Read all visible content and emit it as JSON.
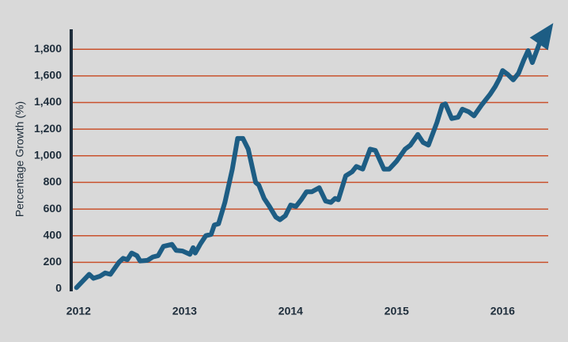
{
  "chart_data": {
    "type": "line",
    "y_label": "Percentage Growth (%)",
    "x": [
      2011.98,
      2012.1,
      2012.14,
      2012.2,
      2012.25,
      2012.3,
      2012.38,
      2012.42,
      2012.46,
      2012.5,
      2012.55,
      2012.58,
      2012.65,
      2012.7,
      2012.75,
      2012.8,
      2012.88,
      2012.92,
      2012.98,
      2013.05,
      2013.08,
      2013.1,
      2013.15,
      2013.2,
      2013.25,
      2013.28,
      2013.32,
      2013.38,
      2013.45,
      2013.5,
      2013.55,
      2013.6,
      2013.67,
      2013.7,
      2013.75,
      2013.8,
      2013.86,
      2013.9,
      2013.95,
      2014.0,
      2014.05,
      2014.1,
      2014.15,
      2014.2,
      2014.27,
      2014.33,
      2014.38,
      2014.42,
      2014.45,
      2014.52,
      2014.58,
      2014.62,
      2014.68,
      2014.75,
      2014.8,
      2014.88,
      2014.93,
      2015.0,
      2015.08,
      2015.13,
      2015.2,
      2015.25,
      2015.3,
      2015.38,
      2015.43,
      2015.46,
      2015.52,
      2015.58,
      2015.62,
      2015.68,
      2015.73,
      2015.8,
      2015.88,
      2015.93,
      2015.97,
      2016.0,
      2016.05,
      2016.1,
      2016.15,
      2016.2,
      2016.24,
      2016.28,
      2016.35
    ],
    "series": [
      {
        "color": "#1d5d84",
        "values": [
          10,
          110,
          80,
          95,
          120,
          110,
          200,
          230,
          220,
          270,
          250,
          210,
          215,
          240,
          250,
          320,
          335,
          290,
          285,
          260,
          310,
          270,
          340,
          400,
          410,
          480,
          490,
          650,
          900,
          1130,
          1130,
          1050,
          800,
          780,
          680,
          620,
          540,
          520,
          550,
          630,
          620,
          670,
          730,
          730,
          760,
          660,
          650,
          680,
          670,
          850,
          880,
          920,
          900,
          1050,
          1040,
          900,
          900,
          960,
          1050,
          1080,
          1160,
          1100,
          1080,
          1250,
          1380,
          1390,
          1280,
          1290,
          1350,
          1330,
          1300,
          1380,
          1460,
          1520,
          1580,
          1640,
          1610,
          1570,
          1620,
          1720,
          1790,
          1700,
          1850
        ]
      }
    ],
    "xlim": [
      2011.93,
      2016.43
    ],
    "xticks": [
      2012,
      2013,
      2014,
      2015,
      2016
    ],
    "ylim": [
      0,
      1950
    ],
    "yticks": [
      0,
      200,
      400,
      600,
      800,
      {
        "value": 1000,
        "label": "1,000"
      },
      {
        "value": 1200,
        "label": "1,200"
      },
      {
        "value": 1400,
        "label": "1,400"
      },
      {
        "value": 1600,
        "label": "1,600"
      },
      {
        "value": 1800,
        "label": "1,800"
      }
    ],
    "grid": true,
    "grid_color": "#c9512c",
    "arrow_end": true
  }
}
